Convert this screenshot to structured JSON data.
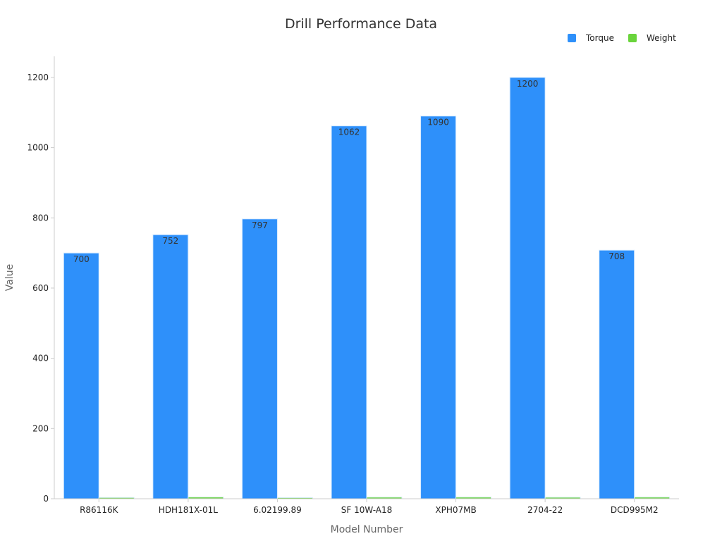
{
  "chart_data": {
    "type": "bar",
    "title": "Drill Performance Data",
    "xlabel": "Model Number",
    "ylabel": "Value",
    "categories": [
      "R86116K",
      "HDH181X-01L",
      "6.02199.89",
      "SF 10W-A18",
      "XPH07MB",
      "2704-22",
      "DCD995M2"
    ],
    "series": [
      {
        "name": "Torque",
        "values": [
          700,
          752,
          797,
          1062,
          1090,
          1200,
          708
        ],
        "color": "#2e90fa",
        "show_labels": true
      },
      {
        "name": "Weight",
        "values": [
          3.5,
          4.8,
          3.2,
          4.5,
          4.6,
          4.2,
          4.6
        ],
        "color": "#6ad43c",
        "show_labels": false
      }
    ],
    "ylim": [
      0,
      1260
    ],
    "yticks": [
      0,
      200,
      400,
      600,
      800,
      1000,
      1200
    ],
    "grid": false,
    "legend_position": "top-right"
  }
}
